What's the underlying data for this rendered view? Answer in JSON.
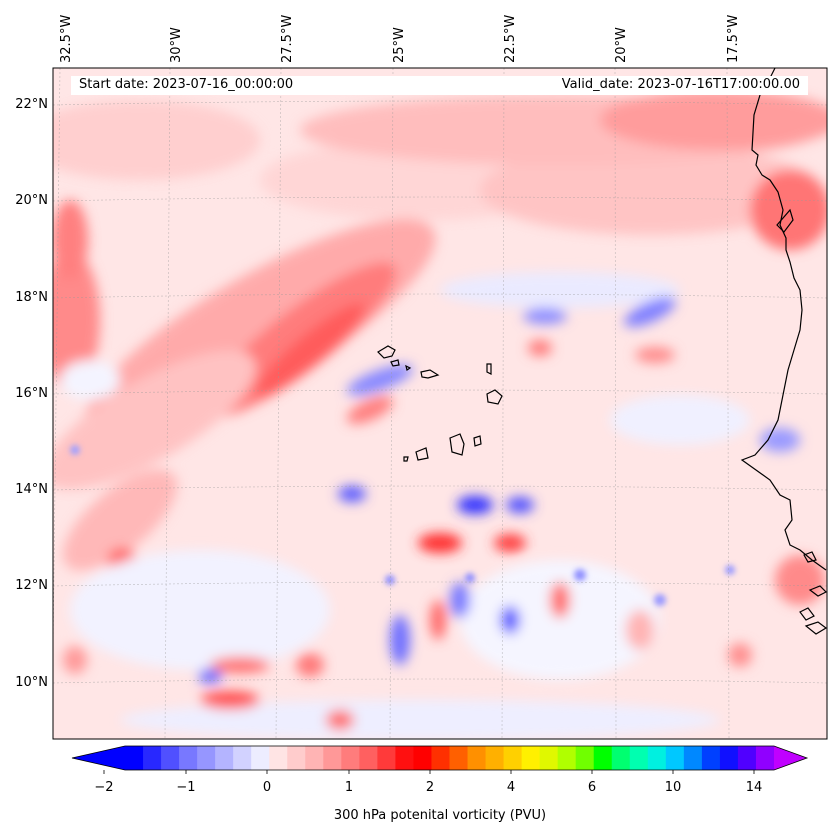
{
  "map": {
    "start_date": "Start date: 2023-07-16_00:00:00",
    "valid_date": "Valid_date: 2023-07-16T17:00:00.00",
    "lon_labels": [
      "32.5°W",
      "30°W",
      "27.5°W",
      "25°W",
      "22.5°W",
      "20°W",
      "17.5°W"
    ],
    "lat_labels": [
      "22°N",
      "20°N",
      "18°N",
      "16°N",
      "14°N",
      "12°N",
      "10°N"
    ],
    "region": "Eastern tropical Atlantic, Cape Verde Islands and West African coast"
  },
  "colorbar": {
    "label": "300 hPa potenital vorticity (PVU)",
    "tick_labels": [
      "−2",
      "−1",
      "0",
      "1",
      "2",
      "4",
      "6",
      "10",
      "14"
    ],
    "colors": [
      "#0000ff",
      "#2828ff",
      "#5050ff",
      "#7878ff",
      "#9696ff",
      "#b4b4ff",
      "#d2d2ff",
      "#ededff",
      "#ffe4e4",
      "#ffcccc",
      "#ffb4b4",
      "#ff9898",
      "#ff7c7c",
      "#ff6060",
      "#ff3a3a",
      "#ff1010",
      "#ff0000",
      "#ff3000",
      "#ff6000",
      "#ff9000",
      "#ffb000",
      "#ffd000",
      "#fff000",
      "#e0f800",
      "#b0ff00",
      "#70ff00",
      "#00ff00",
      "#00ff70",
      "#00ffb0",
      "#00f0e0",
      "#00c8ff",
      "#0088ff",
      "#0040ff",
      "#1010ff",
      "#5000ff",
      "#9000ff"
    ],
    "under_color": "#0000ff",
    "over_color": "#c000ff"
  }
}
